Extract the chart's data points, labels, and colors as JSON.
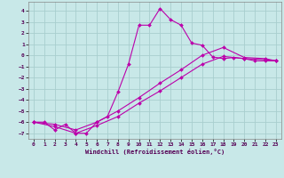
{
  "xlabel": "Windchill (Refroidissement éolien,°C)",
  "bg_color": "#c8e8e8",
  "grid_color": "#a8cece",
  "line_color": "#bb00aa",
  "xlim": [
    -0.5,
    23.5
  ],
  "ylim": [
    -7.5,
    4.8
  ],
  "xticks": [
    0,
    1,
    2,
    3,
    4,
    5,
    6,
    7,
    8,
    9,
    10,
    11,
    12,
    13,
    14,
    15,
    16,
    17,
    18,
    19,
    20,
    21,
    22,
    23
  ],
  "yticks": [
    -7,
    -6,
    -5,
    -4,
    -3,
    -2,
    -1,
    0,
    1,
    2,
    3,
    4
  ],
  "line1_x": [
    0,
    1,
    2,
    3,
    4,
    5,
    6,
    7,
    8,
    9,
    10,
    11,
    12,
    13,
    14,
    15,
    16,
    17,
    18,
    19,
    20,
    21,
    22,
    23
  ],
  "line1_y": [
    -6.0,
    -6.0,
    -6.7,
    -6.2,
    -7.0,
    -7.0,
    -6.0,
    -5.5,
    -3.3,
    -0.8,
    2.7,
    2.7,
    4.2,
    3.2,
    2.7,
    1.1,
    0.9,
    -0.15,
    -0.3,
    -0.2,
    -0.3,
    -0.5,
    -0.5,
    -0.5
  ],
  "line2_x": [
    0,
    2,
    4,
    6,
    8,
    10,
    12,
    14,
    16,
    18,
    20,
    22,
    23
  ],
  "line2_y": [
    -6.0,
    -6.2,
    -6.7,
    -6.0,
    -5.0,
    -3.8,
    -2.5,
    -1.3,
    0.0,
    0.7,
    -0.2,
    -0.3,
    -0.5
  ],
  "line3_x": [
    0,
    2,
    4,
    6,
    8,
    10,
    12,
    14,
    16,
    18,
    20,
    22,
    23
  ],
  "line3_y": [
    -6.0,
    -6.4,
    -7.0,
    -6.3,
    -5.5,
    -4.3,
    -3.2,
    -2.0,
    -0.8,
    -0.1,
    -0.3,
    -0.4,
    -0.5
  ]
}
